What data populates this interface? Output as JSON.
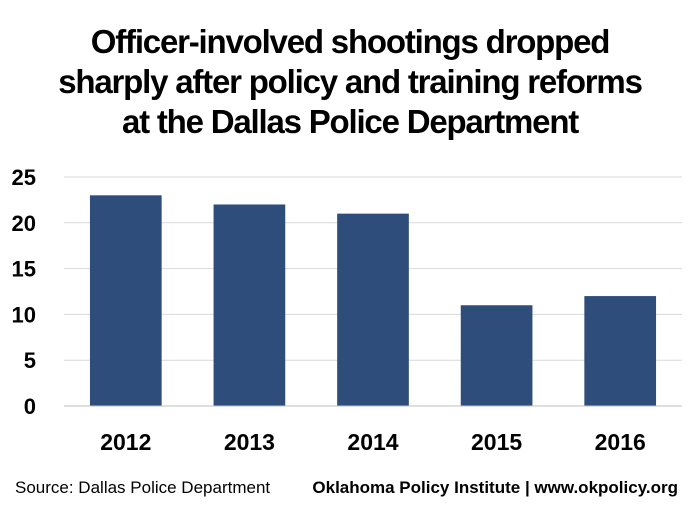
{
  "chart_data": {
    "type": "bar",
    "title_lines": [
      "Officer-involved shootings dropped",
      "sharply after policy and training reforms",
      "at the Dallas Police Department"
    ],
    "categories": [
      "2012",
      "2013",
      "2014",
      "2015",
      "2016"
    ],
    "values": [
      23,
      22,
      21,
      11,
      12
    ],
    "ylim": [
      0,
      25
    ],
    "yticks": [
      "0",
      "5",
      "10",
      "15",
      "20",
      "25"
    ],
    "grid": true,
    "colors": {
      "bar": "#2e4d7b",
      "grid": "#d9d9d9",
      "axis": "#bfbfbf"
    }
  },
  "footer": {
    "source": "Source: Dallas Police Department",
    "credit": "Oklahoma Policy Institute | www.okpolicy.org"
  }
}
